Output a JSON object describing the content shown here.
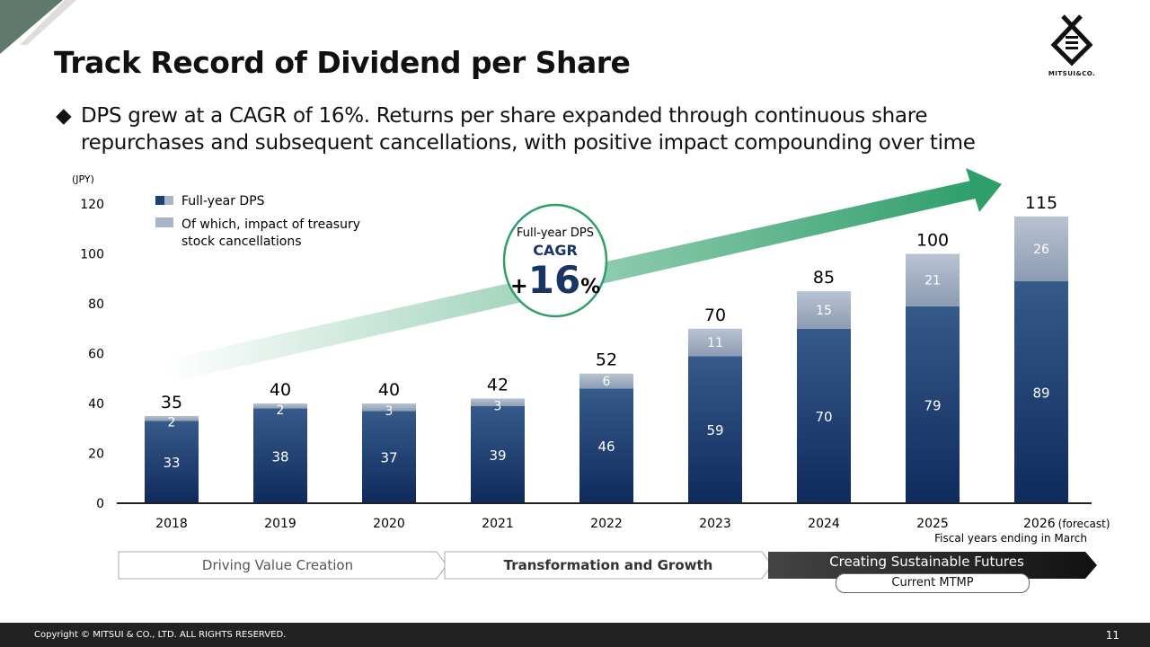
{
  "header": {
    "title": "Track Record of Dividend per Share",
    "bullet_symbol": "◆",
    "bullet_line1": "DPS grew at a CAGR of 16%. Returns per share expanded through continuous share",
    "bullet_line2": "repurchases and subsequent cancellations, with positive impact compounding over time"
  },
  "logo": {
    "text": "MITSUI&CO."
  },
  "cagr_badge": {
    "line1": "Full-year DPS",
    "line2": "CAGR",
    "plus": "+",
    "value": "16",
    "unit": "%"
  },
  "colors": {
    "dps": "#1f3f73",
    "cancellation": "#a9b6c8",
    "arrow": "#2e9e6a",
    "circle": "#2e9e6a",
    "cagr_text": "#1a3563"
  },
  "chart_data": {
    "type": "bar",
    "stacked": true,
    "unit_label": "(JPY)",
    "categories": [
      "2018",
      "2019",
      "2020",
      "2021",
      "2022",
      "2023",
      "2024",
      "2025",
      "2026"
    ],
    "category_suffix_last": "(forecast)",
    "x_note": "Fiscal years ending in March",
    "ylim": [
      0,
      120
    ],
    "yticks": [
      0,
      20,
      40,
      60,
      80,
      100,
      120
    ],
    "grid": false,
    "legend_placement": "top-left",
    "legend": [
      "Full-year DPS",
      "Of which, impact of treasury",
      "stock cancellations"
    ],
    "series": [
      {
        "name": "Full-year DPS",
        "values": [
          33,
          38,
          37,
          39,
          46,
          59,
          70,
          79,
          89
        ]
      },
      {
        "name": "Of which, impact of treasury stock cancellations",
        "values": [
          2,
          2,
          3,
          3,
          6,
          11,
          15,
          21,
          26
        ]
      }
    ],
    "totals": [
      35,
      40,
      40,
      42,
      52,
      70,
      85,
      100,
      115
    ]
  },
  "phases": [
    {
      "label": "Driving Value Creation"
    },
    {
      "label": "Transformation and Growth"
    },
    {
      "label": "Creating Sustainable Futures"
    }
  ],
  "mtmp_label": "Current MTMP",
  "footer": {
    "copyright": "Copyright © MITSUI & CO., LTD. ALL RIGHTS RESERVED.",
    "page": "11"
  }
}
